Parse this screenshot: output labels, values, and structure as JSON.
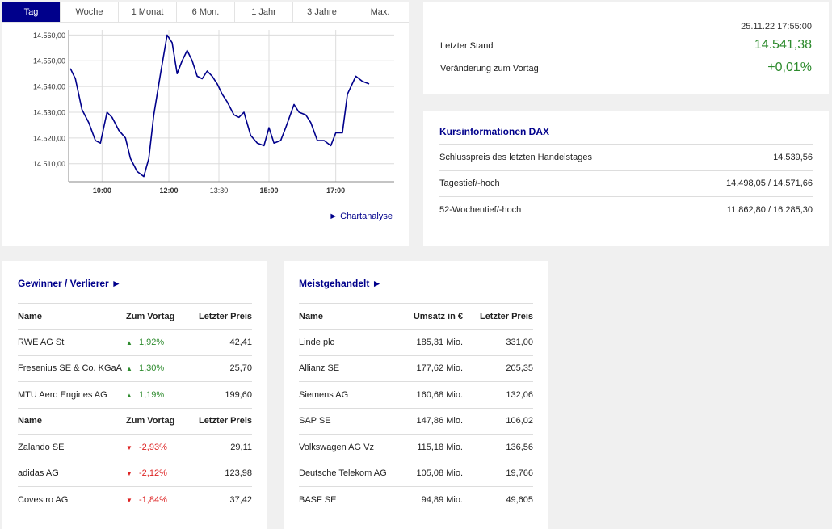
{
  "tabs": [
    "Tag",
    "Woche",
    "1 Monat",
    "6 Mon.",
    "1 Jahr",
    "3 Jahre",
    "Max."
  ],
  "active_tab": 0,
  "chart_link": "► Chartanalyse",
  "chart_data": {
    "type": "line",
    "ylim": [
      14503,
      14562
    ],
    "xlim": [
      9.0,
      18.75
    ],
    "y_ticks": [
      {
        "v": 14510,
        "label": "14.510,00"
      },
      {
        "v": 14520,
        "label": "14.520,00"
      },
      {
        "v": 14530,
        "label": "14.530,00"
      },
      {
        "v": 14540,
        "label": "14.540,00"
      },
      {
        "v": 14550,
        "label": "14.550,00"
      },
      {
        "v": 14560,
        "label": "14.560,00"
      }
    ],
    "x_ticks": [
      {
        "v": 10.0,
        "label": "10:00",
        "bold": true
      },
      {
        "v": 12.0,
        "label": "12:00",
        "bold": true
      },
      {
        "v": 13.5,
        "label": "13:30",
        "bold": false
      },
      {
        "v": 15.0,
        "label": "15:00",
        "bold": true
      },
      {
        "v": 17.0,
        "label": "17:00",
        "bold": true
      }
    ],
    "x": [
      9.05,
      9.2,
      9.4,
      9.6,
      9.8,
      9.95,
      10.15,
      10.3,
      10.5,
      10.7,
      10.85,
      11.05,
      11.25,
      11.4,
      11.55,
      11.75,
      11.95,
      12.1,
      12.25,
      12.4,
      12.55,
      12.7,
      12.85,
      13.0,
      13.15,
      13.3,
      13.45,
      13.6,
      13.75,
      13.95,
      14.1,
      14.25,
      14.45,
      14.65,
      14.85,
      15.0,
      15.15,
      15.35,
      15.5,
      15.75,
      15.9,
      16.1,
      16.25,
      16.45,
      16.65,
      16.85,
      17.0,
      17.2,
      17.35,
      17.6,
      17.8,
      18.0
    ],
    "values": [
      14547,
      14543,
      14531,
      14526,
      14519,
      14518,
      14530,
      14528,
      14523,
      14520,
      14512,
      14507,
      14505,
      14512,
      14529,
      14545,
      14560,
      14557,
      14545,
      14550,
      14554,
      14550,
      14544,
      14543,
      14546,
      14544,
      14541,
      14537,
      14534,
      14529,
      14528,
      14530,
      14521,
      14518,
      14517,
      14524,
      14518,
      14519,
      14524,
      14533,
      14530,
      14529,
      14526,
      14519,
      14519,
      14517,
      14522,
      14522,
      14537,
      14544,
      14542,
      14541
    ]
  },
  "quote": {
    "timestamp": "25.11.22 17:55:00",
    "last_label": "Letzter Stand",
    "last_value": "14.541,38",
    "change_label": "Veränderung zum Vortag",
    "change_value": "+0,01%",
    "up_color": "#2e8b2e"
  },
  "info": {
    "title": "Kursinformationen DAX",
    "rows": [
      {
        "label": "Schlusspreis des letzten Handelstages",
        "value": "14.539,56"
      },
      {
        "label": "Tagestief/-hoch",
        "value": "14.498,05 / 14.571,66"
      },
      {
        "label": "52-Wochentief/-hoch",
        "value": "11.862,80 / 16.285,30"
      }
    ]
  },
  "gainers_losers": {
    "title": "Gewinner / Verlierer ►",
    "headers": [
      "Name",
      "Zum Vortag",
      "Letzter Preis"
    ],
    "gainers": [
      {
        "name": "RWE AG St",
        "change": "1,92%",
        "price": "42,41"
      },
      {
        "name": "Fresenius SE & Co. KGaA",
        "change": "1,30%",
        "price": "25,70"
      },
      {
        "name": "MTU Aero Engines AG",
        "change": "1,19%",
        "price": "199,60"
      }
    ],
    "losers": [
      {
        "name": "Zalando SE",
        "change": "-2,93%",
        "price": "29,11"
      },
      {
        "name": "adidas AG",
        "change": "-2,12%",
        "price": "123,98"
      },
      {
        "name": "Covestro AG",
        "change": "-1,84%",
        "price": "37,42"
      }
    ],
    "up_arrow": "▲",
    "down_arrow": "▼"
  },
  "most_traded": {
    "title": "Meistgehandelt ►",
    "headers": [
      "Name",
      "Umsatz in €",
      "Letzter Preis"
    ],
    "rows": [
      {
        "name": "Linde plc",
        "volume": "185,31 Mio.",
        "price": "331,00"
      },
      {
        "name": "Allianz SE",
        "volume": "177,62 Mio.",
        "price": "205,35"
      },
      {
        "name": "Siemens AG",
        "volume": "160,68 Mio.",
        "price": "132,06"
      },
      {
        "name": "SAP SE",
        "volume": "147,86 Mio.",
        "price": "106,02"
      },
      {
        "name": "Volkswagen AG Vz",
        "volume": "115,18 Mio.",
        "price": "136,56"
      },
      {
        "name": "Deutsche Telekom AG",
        "volume": "105,08 Mio.",
        "price": "19,766"
      },
      {
        "name": "BASF SE",
        "volume": "94,89 Mio.",
        "price": "49,605"
      }
    ]
  }
}
